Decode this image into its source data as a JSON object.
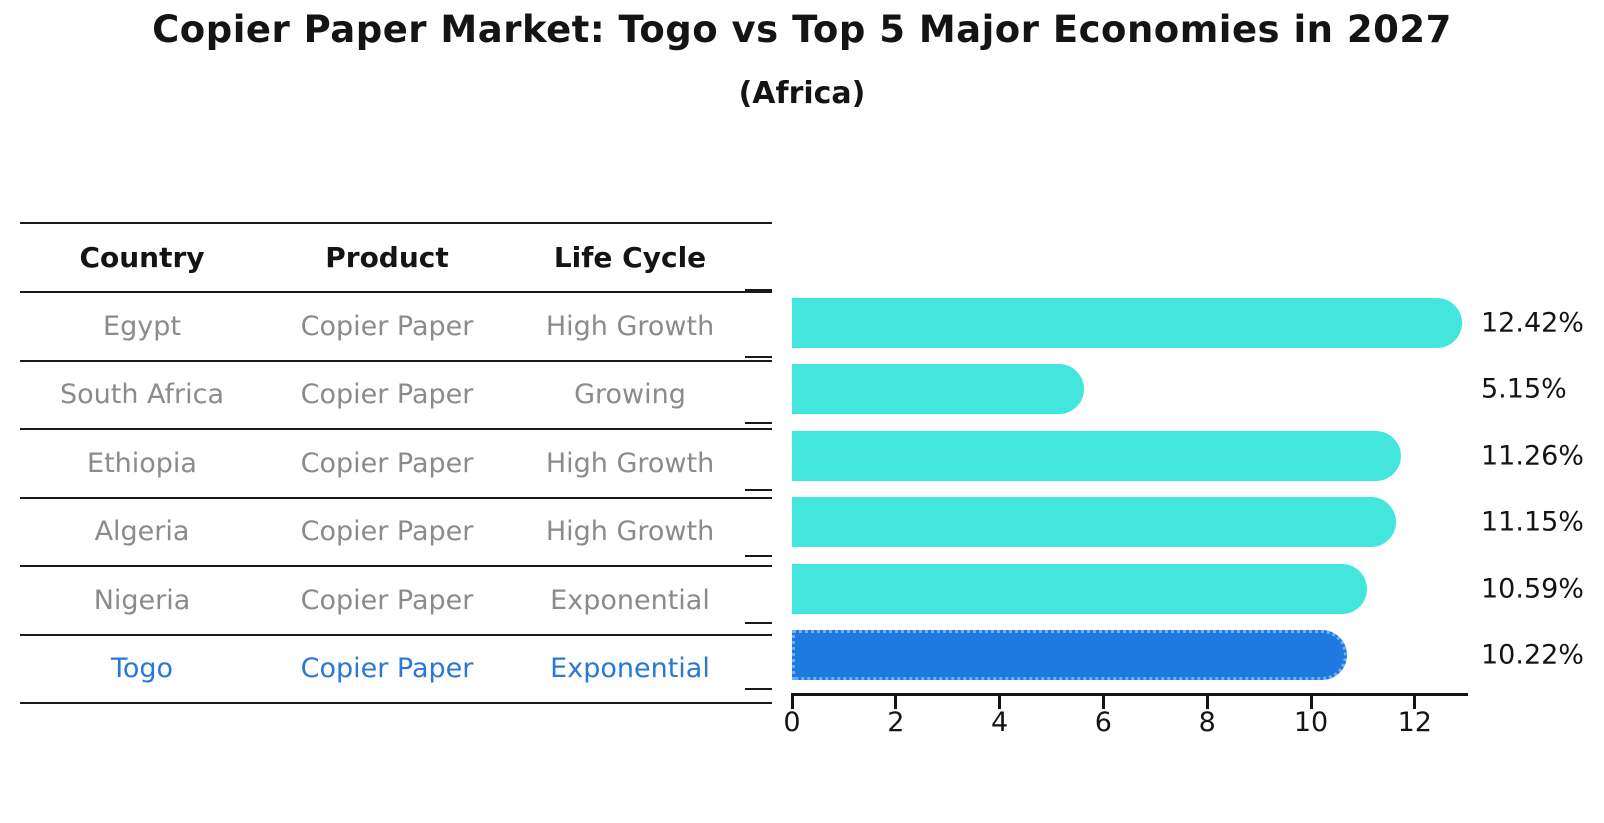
{
  "title": "Copier Paper Market: Togo vs Top 5 Major Economies in 2027",
  "subtitle": "(Africa)",
  "table": {
    "headers": {
      "country": "Country",
      "product": "Product",
      "life_cycle": "Life Cycle"
    },
    "rows": [
      {
        "country": "Egypt",
        "product": "Copier Paper",
        "life_cycle": "High Growth"
      },
      {
        "country": "South Africa",
        "product": "Copier Paper",
        "life_cycle": "Growing"
      },
      {
        "country": "Ethiopia",
        "product": "Copier Paper",
        "life_cycle": "High Growth"
      },
      {
        "country": "Algeria",
        "product": "Copier Paper",
        "life_cycle": "High Growth"
      },
      {
        "country": "Nigeria",
        "product": "Copier Paper",
        "life_cycle": "Exponential"
      },
      {
        "country": "Togo",
        "product": "Copier Paper",
        "life_cycle": "Exponential"
      }
    ],
    "highlighted_row": "Togo"
  },
  "chart_data": {
    "type": "bar",
    "orientation": "horizontal",
    "categories": [
      "Egypt",
      "South Africa",
      "Ethiopia",
      "Algeria",
      "Nigeria",
      "Togo"
    ],
    "values": [
      12.42,
      5.15,
      11.26,
      11.15,
      10.59,
      10.22
    ],
    "value_labels": [
      "12.42%",
      "5.15%",
      "11.26%",
      "11.15%",
      "10.59%",
      "10.22%"
    ],
    "xticks": [
      "0",
      "2",
      "4",
      "6",
      "8",
      "10",
      "12"
    ],
    "xlim": [
      0,
      13
    ],
    "grid": false,
    "legend": "none",
    "highlight_index": 5
  },
  "colors": {
    "bar": "#42E6DC",
    "highlight_bar": "#1E79E1",
    "highlight_border": "#6FB0F2",
    "highlight_text": "#2878D6",
    "table_text": "#8B8B8B",
    "ink": "#141414"
  }
}
